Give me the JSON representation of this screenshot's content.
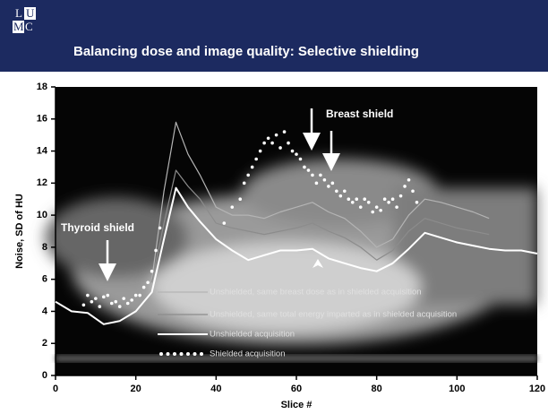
{
  "header": {
    "logo": [
      "L",
      "U",
      "M",
      "C"
    ],
    "title": "Balancing dose and image quality: Selective shielding"
  },
  "chart_data": {
    "type": "line",
    "xlabel": "Slice #",
    "ylabel": "Noise, SD of HU",
    "xlim": [
      0,
      120
    ],
    "xticks": [
      0,
      20,
      40,
      60,
      80,
      100,
      120
    ],
    "ylim": [
      0,
      18
    ],
    "yticks": [
      0,
      2,
      4,
      6,
      8,
      10,
      12,
      14,
      16,
      18
    ],
    "annotations": [
      {
        "text": "Thyroid shield"
      },
      {
        "text": "Breast shield"
      }
    ],
    "x": [
      0,
      4,
      8,
      12,
      16,
      20,
      24,
      27,
      30,
      33,
      36,
      40,
      44,
      48,
      52,
      56,
      60,
      64,
      68,
      72,
      76,
      80,
      84,
      88,
      92,
      96,
      100,
      104,
      108,
      112,
      116,
      120
    ],
    "series": [
      {
        "name": "Unshielded, same breast dose as in shielded acquisition",
        "color": "#b4b4b4",
        "width": 1.2,
        "values": [
          null,
          null,
          null,
          null,
          null,
          null,
          6.0,
          11.5,
          15.8,
          13.8,
          12.5,
          10.5,
          10.0,
          10.0,
          9.8,
          10.2,
          10.5,
          10.8,
          10.2,
          9.8,
          9.0,
          8.0,
          8.5,
          10.0,
          11.0,
          10.8,
          10.5,
          10.2,
          9.8,
          null,
          null,
          null
        ]
      },
      {
        "name": "Unshielded, same total energy imparted as in shielded acquisition",
        "color": "#8c8c8c",
        "width": 1.2,
        "values": [
          null,
          null,
          null,
          null,
          null,
          null,
          5.8,
          9.5,
          12.8,
          11.8,
          11.0,
          9.5,
          9.2,
          9.0,
          8.8,
          9.0,
          9.2,
          9.5,
          9.0,
          8.6,
          8.0,
          7.2,
          7.8,
          9.0,
          9.8,
          9.5,
          9.2,
          9.0,
          8.8,
          null,
          null,
          null
        ]
      },
      {
        "name": "Unshielded acquisition",
        "color": "#ffffff",
        "width": 2,
        "values": [
          4.6,
          4.0,
          3.9,
          3.2,
          3.4,
          4.0,
          5.2,
          8.5,
          11.7,
          10.5,
          9.6,
          8.5,
          7.8,
          7.2,
          7.5,
          7.8,
          7.8,
          7.9,
          7.3,
          7.0,
          6.7,
          6.5,
          7.0,
          7.9,
          8.9,
          8.6,
          8.3,
          8.1,
          7.9,
          7.8,
          7.8,
          7.6
        ]
      },
      {
        "name": "Shielded acquisition",
        "color": "#ffffff",
        "style": "dots",
        "x": [
          7,
          8,
          9,
          10,
          11,
          12,
          13,
          14,
          15,
          16,
          17,
          18,
          19,
          20,
          21,
          22,
          23,
          24,
          25,
          26,
          42,
          44,
          46,
          47,
          48,
          49,
          50,
          51,
          52,
          53,
          54,
          55,
          56,
          57,
          58,
          59,
          60,
          61,
          62,
          63,
          64,
          65,
          66,
          67,
          68,
          69,
          70,
          71,
          72,
          73,
          74,
          75,
          76,
          77,
          78,
          79,
          80,
          81,
          82,
          83,
          84,
          85,
          86,
          87,
          88,
          89,
          90
        ],
        "values": [
          4.4,
          5.0,
          4.6,
          4.8,
          4.3,
          4.9,
          5.0,
          4.5,
          4.6,
          4.3,
          4.8,
          4.5,
          4.7,
          5.0,
          5.0,
          5.5,
          5.8,
          6.5,
          7.8,
          9.2,
          9.5,
          10.5,
          11.0,
          12.0,
          12.5,
          13.0,
          13.5,
          14.0,
          14.5,
          14.8,
          14.5,
          15.0,
          14.2,
          15.2,
          14.5,
          14.0,
          13.8,
          13.5,
          13.0,
          12.8,
          12.5,
          12.0,
          12.5,
          12.2,
          11.8,
          12.0,
          11.5,
          11.2,
          11.5,
          11.0,
          10.8,
          11.0,
          10.5,
          11.0,
          10.8,
          10.2,
          10.5,
          10.3,
          11.0,
          10.8,
          11.0,
          10.5,
          11.2,
          11.8,
          12.2,
          11.5,
          10.8
        ]
      }
    ]
  }
}
